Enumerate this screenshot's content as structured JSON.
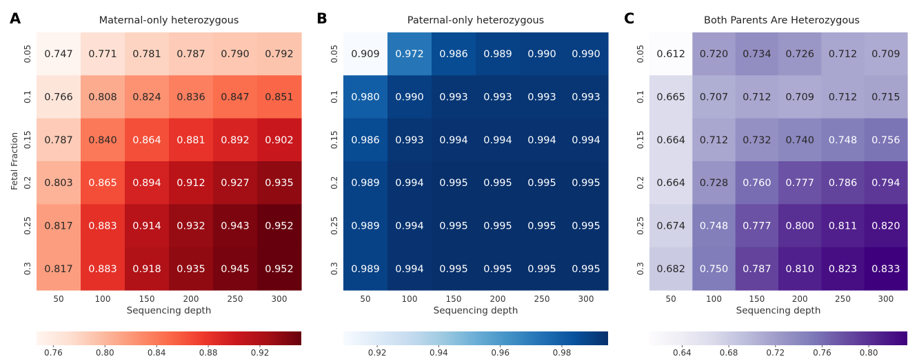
{
  "chart_data": [
    {
      "type": "heatmap",
      "panel_letter": "A",
      "title": "Maternal-only heterozygous",
      "xlabel": "Sequencing depth",
      "ylabel": "Fetal Fraction",
      "x_categories": [
        "50",
        "100",
        "150",
        "200",
        "250",
        "300"
      ],
      "y_categories": [
        "0.05",
        "0.1",
        "0.15",
        "0.2",
        "0.25",
        "0.3"
      ],
      "values": [
        [
          0.747,
          0.771,
          0.781,
          0.787,
          0.79,
          0.792
        ],
        [
          0.766,
          0.808,
          0.824,
          0.836,
          0.847,
          0.851
        ],
        [
          0.787,
          0.84,
          0.864,
          0.881,
          0.892,
          0.902
        ],
        [
          0.803,
          0.865,
          0.894,
          0.912,
          0.927,
          0.935
        ],
        [
          0.817,
          0.883,
          0.914,
          0.932,
          0.943,
          0.952
        ],
        [
          0.817,
          0.883,
          0.918,
          0.935,
          0.945,
          0.952
        ]
      ],
      "labels": [
        [
          "0.747",
          "0.771",
          "0.781",
          "0.787",
          "0.790",
          "0.792"
        ],
        [
          "0.766",
          "0.808",
          "0.824",
          "0.836",
          "0.847",
          "0.851"
        ],
        [
          "0.787",
          "0.840",
          "0.864",
          "0.881",
          "0.892",
          "0.902"
        ],
        [
          "0.803",
          "0.865",
          "0.894",
          "0.912",
          "0.927",
          "0.935"
        ],
        [
          "0.817",
          "0.883",
          "0.914",
          "0.932",
          "0.943",
          "0.952"
        ],
        [
          "0.817",
          "0.883",
          "0.918",
          "0.935",
          "0.945",
          "0.952"
        ]
      ],
      "colormap": "Reds",
      "colormap_stops": [
        "#fff5f0",
        "#fee0d2",
        "#fcbba1",
        "#fc9272",
        "#fb6a4a",
        "#ef3b2c",
        "#cb181d",
        "#a50f15",
        "#67000d"
      ],
      "vmin": 0.747,
      "vmax": 0.952,
      "colorbar_ticks": [
        "0.76",
        "0.80",
        "0.84",
        "0.88",
        "0.92"
      ],
      "colorbar_tick_values": [
        0.76,
        0.8,
        0.84,
        0.88,
        0.92
      ],
      "colorbar_position": "bottom"
    },
    {
      "type": "heatmap",
      "panel_letter": "B",
      "title": "Paternal-only heterozygous",
      "xlabel": "Sequencing depth",
      "ylabel": "",
      "x_categories": [
        "50",
        "100",
        "150",
        "200",
        "250",
        "300"
      ],
      "y_categories": [
        "0.05",
        "0.1",
        "0.15",
        "0.2",
        "0.25",
        "0.3"
      ],
      "values": [
        [
          0.909,
          0.972,
          0.986,
          0.989,
          0.99,
          0.99
        ],
        [
          0.98,
          0.99,
          0.993,
          0.993,
          0.993,
          0.993
        ],
        [
          0.986,
          0.993,
          0.994,
          0.994,
          0.994,
          0.994
        ],
        [
          0.989,
          0.994,
          0.995,
          0.995,
          0.995,
          0.995
        ],
        [
          0.989,
          0.994,
          0.995,
          0.995,
          0.995,
          0.995
        ],
        [
          0.989,
          0.994,
          0.995,
          0.995,
          0.995,
          0.995
        ]
      ],
      "labels": [
        [
          "0.909",
          "0.972",
          "0.986",
          "0.989",
          "0.990",
          "0.990"
        ],
        [
          "0.980",
          "0.990",
          "0.993",
          "0.993",
          "0.993",
          "0.993"
        ],
        [
          "0.986",
          "0.993",
          "0.994",
          "0.994",
          "0.994",
          "0.994"
        ],
        [
          "0.989",
          "0.994",
          "0.995",
          "0.995",
          "0.995",
          "0.995"
        ],
        [
          "0.989",
          "0.994",
          "0.995",
          "0.995",
          "0.995",
          "0.995"
        ],
        [
          "0.989",
          "0.994",
          "0.995",
          "0.995",
          "0.995",
          "0.995"
        ]
      ],
      "colormap": "Blues",
      "colormap_stops": [
        "#f7fbff",
        "#deebf7",
        "#c6dbef",
        "#9ecae1",
        "#6baed6",
        "#4292c6",
        "#2171b5",
        "#08519c",
        "#08306b"
      ],
      "vmin": 0.909,
      "vmax": 0.995,
      "colorbar_ticks": [
        "0.92",
        "0.94",
        "0.96",
        "0.98"
      ],
      "colorbar_tick_values": [
        0.92,
        0.94,
        0.96,
        0.98
      ],
      "colorbar_position": "bottom"
    },
    {
      "type": "heatmap",
      "panel_letter": "C",
      "title": "Both Parents Are Heterozygous",
      "xlabel": "Sequencing depth",
      "ylabel": "",
      "x_categories": [
        "50",
        "100",
        "150",
        "200",
        "250",
        "300"
      ],
      "y_categories": [
        "0.05",
        "0.1",
        "0.15",
        "0.2",
        "0.25",
        "0.3"
      ],
      "values": [
        [
          0.612,
          0.72,
          0.734,
          0.726,
          0.712,
          0.709
        ],
        [
          0.665,
          0.707,
          0.712,
          0.709,
          0.712,
          0.715
        ],
        [
          0.664,
          0.712,
          0.732,
          0.74,
          0.748,
          0.756
        ],
        [
          0.664,
          0.728,
          0.76,
          0.777,
          0.786,
          0.794
        ],
        [
          0.674,
          0.748,
          0.777,
          0.8,
          0.811,
          0.82
        ],
        [
          0.682,
          0.75,
          0.787,
          0.81,
          0.823,
          0.833
        ]
      ],
      "labels": [
        [
          "0.612",
          "0.720",
          "0.734",
          "0.726",
          "0.712",
          "0.709"
        ],
        [
          "0.665",
          "0.707",
          "0.712",
          "0.709",
          "0.712",
          "0.715"
        ],
        [
          "0.664",
          "0.712",
          "0.732",
          "0.740",
          "0.748",
          "0.756"
        ],
        [
          "0.664",
          "0.728",
          "0.760",
          "0.777",
          "0.786",
          "0.794"
        ],
        [
          "0.674",
          "0.748",
          "0.777",
          "0.800",
          "0.811",
          "0.820"
        ],
        [
          "0.682",
          "0.750",
          "0.787",
          "0.810",
          "0.823",
          "0.833"
        ]
      ],
      "colormap": "Purples",
      "colormap_stops": [
        "#fcfbfd",
        "#efedf5",
        "#dadaeb",
        "#bcbddc",
        "#9e9ac8",
        "#807dba",
        "#6a51a3",
        "#54278f",
        "#3f007d"
      ],
      "vmin": 0.612,
      "vmax": 0.833,
      "colorbar_ticks": [
        "0.64",
        "0.68",
        "0.72",
        "0.76",
        "0.80"
      ],
      "colorbar_tick_values": [
        0.64,
        0.68,
        0.72,
        0.76,
        0.8
      ],
      "colorbar_position": "bottom"
    }
  ]
}
